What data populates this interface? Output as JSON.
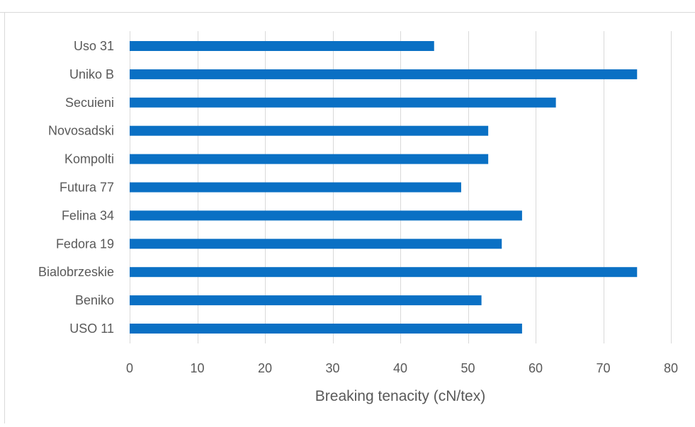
{
  "chart_data": {
    "type": "bar",
    "orientation": "horizontal",
    "categories": [
      "Uso 31",
      "Uniko B",
      "Secuieni",
      "Novosadski",
      "Kompolti",
      "Futura 77",
      "Felina 34",
      "Fedora 19",
      "Bialobrzeskie",
      "Beniko",
      "USO 11"
    ],
    "values": [
      45,
      75,
      63,
      53,
      53,
      49,
      58,
      55,
      75,
      52,
      58
    ],
    "xlabel": "Breaking tenacity (cN/tex)",
    "ylabel": "",
    "xlim": [
      0,
      80
    ],
    "xticks": [
      "0",
      "10",
      "20",
      "30",
      "40",
      "50",
      "60",
      "70",
      "80"
    ],
    "grid": true,
    "legend": "none",
    "colors": {
      "bar": "#0a70c4",
      "grid": "#d9d9d9",
      "text": "#595959"
    }
  }
}
